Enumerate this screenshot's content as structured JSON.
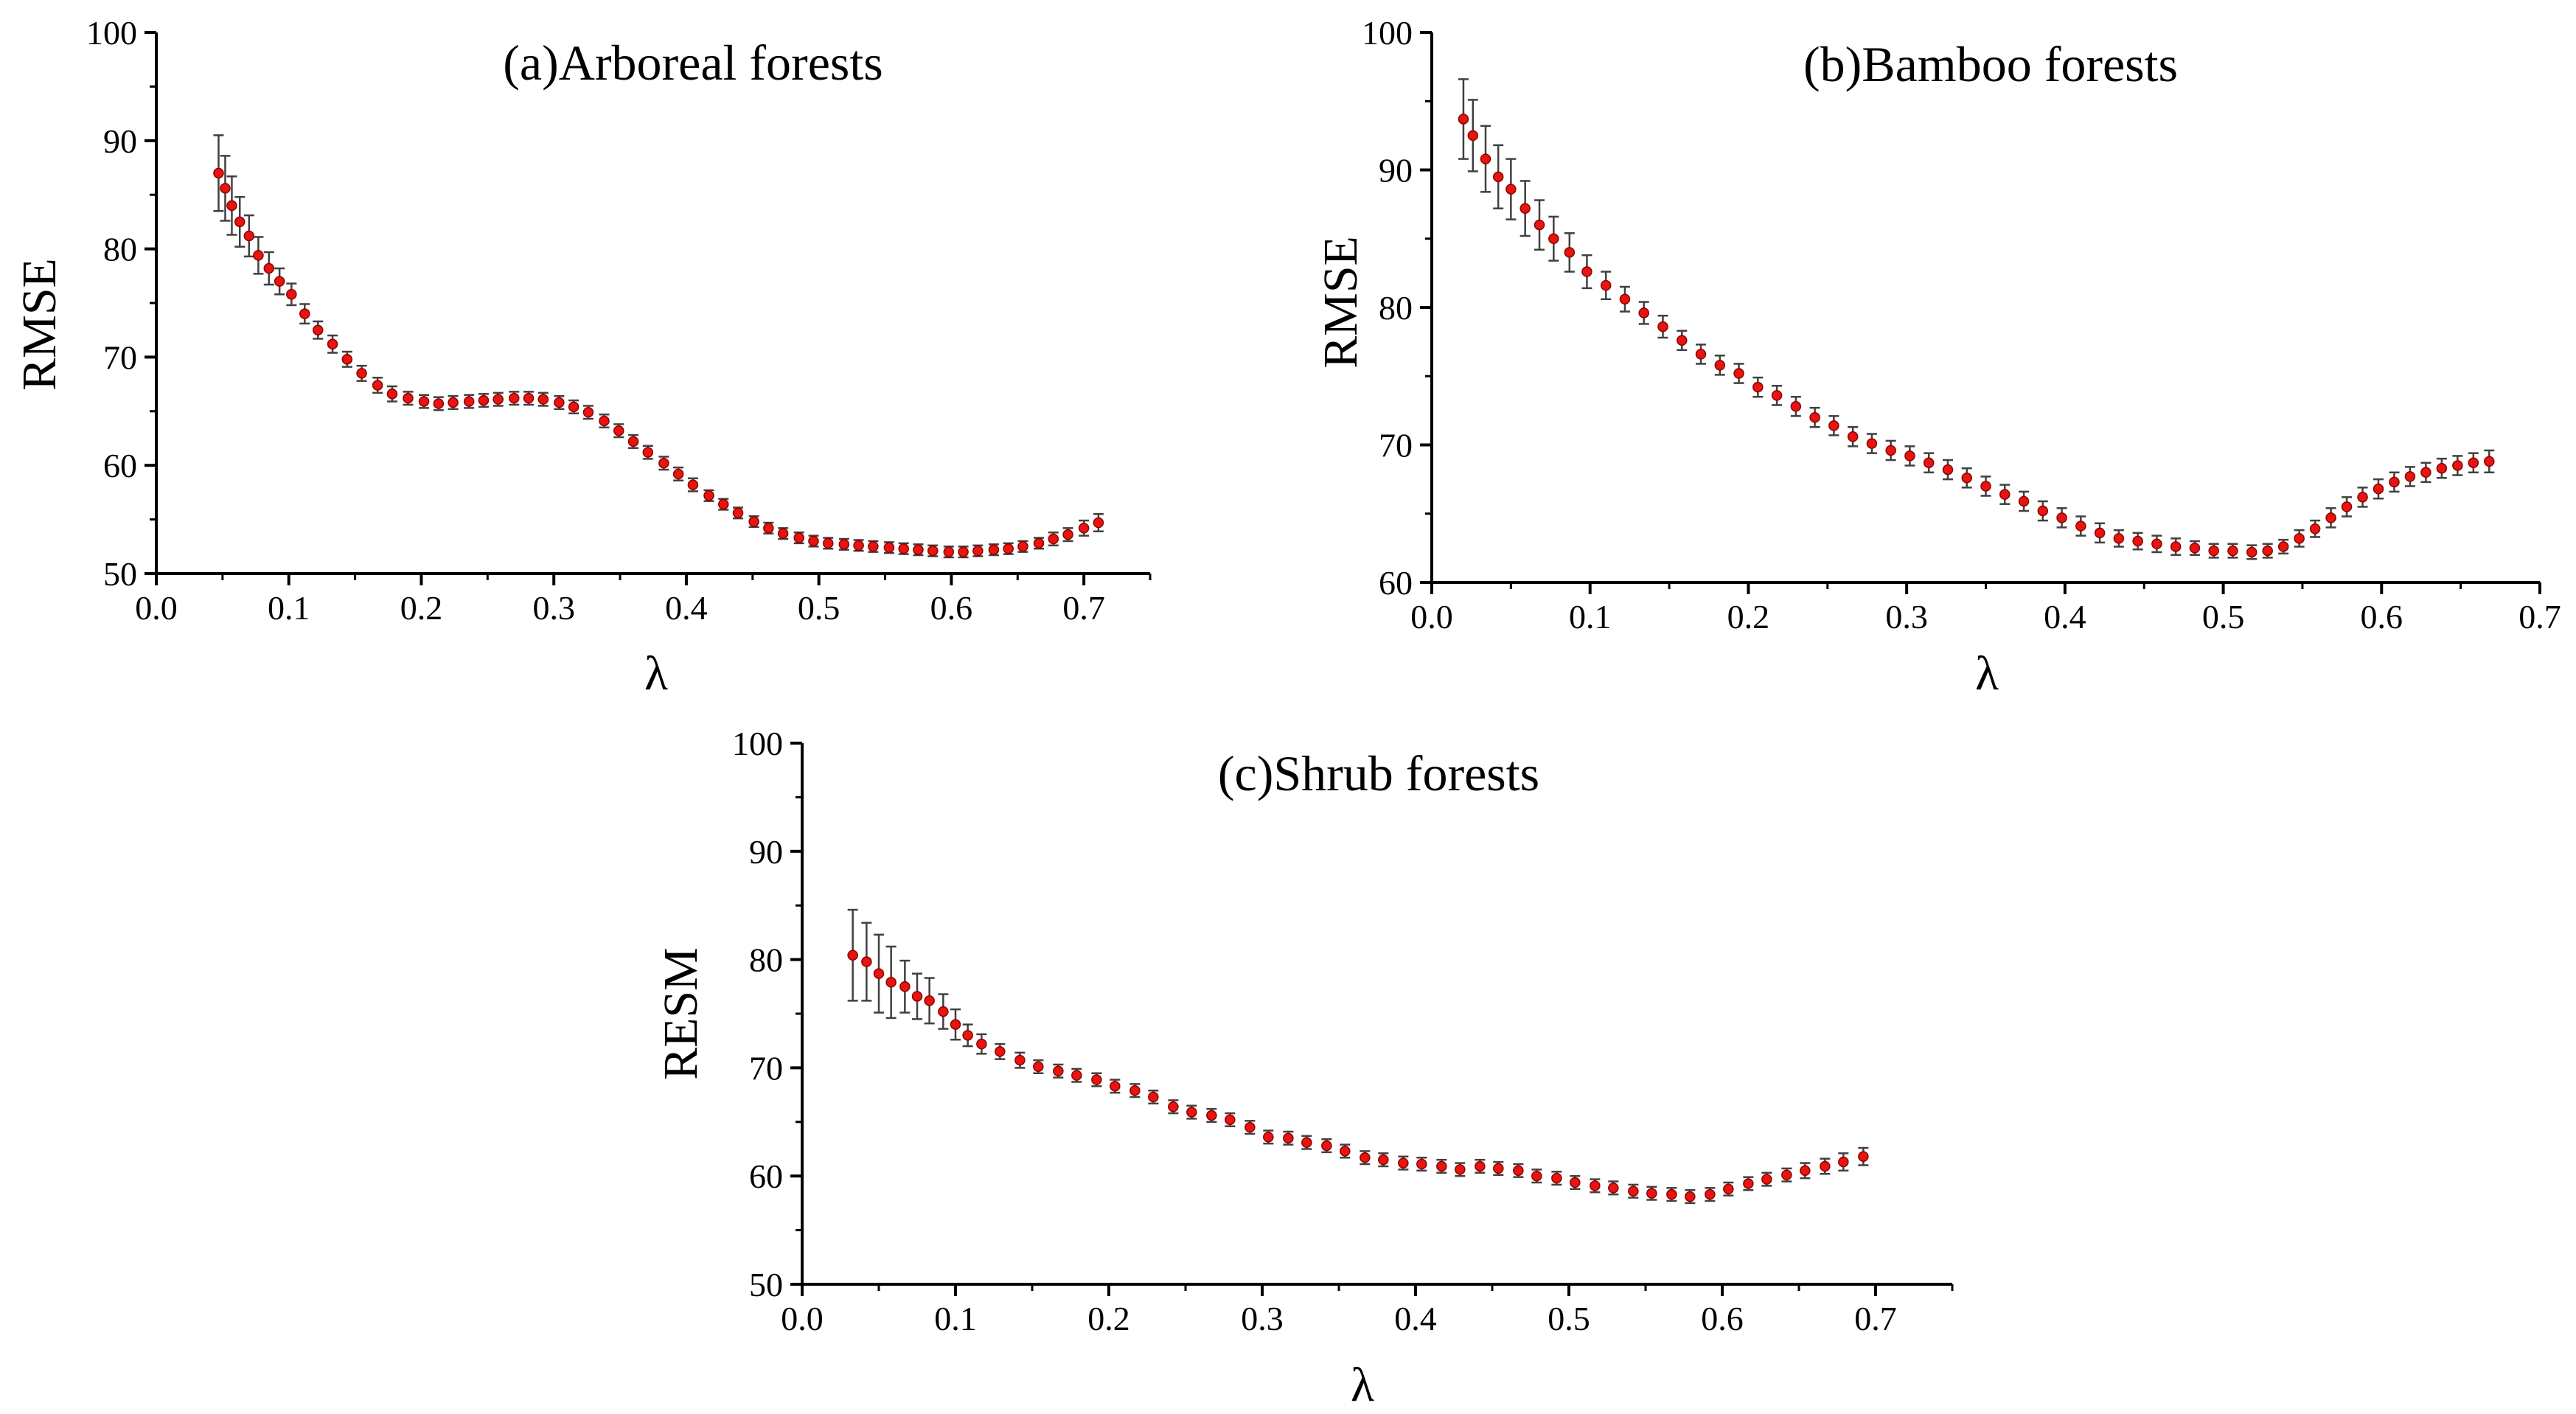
{
  "figure": {
    "description_panels": 3
  },
  "colors": {
    "marker": "#e8140f",
    "marker_edge": "#8b0000",
    "errorbar": "#404040",
    "axis": "#000000"
  },
  "chart_data": [
    {
      "type": "scatter",
      "title": "(a)Arboreal forests",
      "xlabel": "λ",
      "ylabel": "RMSE",
      "xlim": [
        0.0,
        0.75
      ],
      "ylim": [
        50,
        100
      ],
      "xticks": [
        "0.0",
        "0.1",
        "0.2",
        "0.3",
        "0.4",
        "0.5",
        "0.6",
        "0.7"
      ],
      "yticks": [
        "50",
        "60",
        "70",
        "80",
        "90",
        "100"
      ],
      "x": [
        0.047,
        0.052,
        0.057,
        0.063,
        0.07,
        0.077,
        0.085,
        0.093,
        0.102,
        0.112,
        0.122,
        0.133,
        0.144,
        0.155,
        0.167,
        0.178,
        0.19,
        0.202,
        0.213,
        0.224,
        0.236,
        0.247,
        0.258,
        0.27,
        0.281,
        0.292,
        0.304,
        0.315,
        0.326,
        0.338,
        0.349,
        0.36,
        0.371,
        0.383,
        0.394,
        0.405,
        0.417,
        0.428,
        0.439,
        0.451,
        0.462,
        0.473,
        0.485,
        0.496,
        0.507,
        0.519,
        0.53,
        0.541,
        0.553,
        0.564,
        0.575,
        0.586,
        0.598,
        0.609,
        0.62,
        0.632,
        0.643,
        0.654,
        0.666,
        0.677,
        0.688,
        0.7,
        0.711
      ],
      "y": [
        87.0,
        85.6,
        84.0,
        82.5,
        81.2,
        79.4,
        78.2,
        77.0,
        75.8,
        74.0,
        72.5,
        71.2,
        69.8,
        68.5,
        67.4,
        66.6,
        66.2,
        65.9,
        65.7,
        65.8,
        65.9,
        66.0,
        66.1,
        66.2,
        66.2,
        66.1,
        65.8,
        65.4,
        64.9,
        64.1,
        63.2,
        62.2,
        61.2,
        60.2,
        59.2,
        58.2,
        57.2,
        56.4,
        55.6,
        54.8,
        54.2,
        53.7,
        53.3,
        53.0,
        52.8,
        52.7,
        52.6,
        52.5,
        52.4,
        52.3,
        52.2,
        52.1,
        52.0,
        52.0,
        52.1,
        52.2,
        52.3,
        52.5,
        52.8,
        53.2,
        53.6,
        54.2,
        54.7
      ],
      "err": [
        3.5,
        3.0,
        2.7,
        2.3,
        1.9,
        1.7,
        1.5,
        1.2,
        1.0,
        0.9,
        0.8,
        0.8,
        0.7,
        0.7,
        0.7,
        0.7,
        0.6,
        0.6,
        0.6,
        0.6,
        0.6,
        0.6,
        0.6,
        0.6,
        0.6,
        0.6,
        0.6,
        0.6,
        0.6,
        0.6,
        0.6,
        0.6,
        0.6,
        0.6,
        0.6,
        0.6,
        0.5,
        0.5,
        0.5,
        0.5,
        0.5,
        0.5,
        0.5,
        0.5,
        0.5,
        0.5,
        0.5,
        0.5,
        0.5,
        0.5,
        0.5,
        0.5,
        0.5,
        0.5,
        0.5,
        0.5,
        0.5,
        0.5,
        0.5,
        0.6,
        0.6,
        0.7,
        0.8
      ]
    },
    {
      "type": "scatter",
      "title": "(b)Bamboo forests",
      "xlabel": "λ",
      "ylabel": "RMSE",
      "xlim": [
        0.0,
        0.7
      ],
      "ylim": [
        60,
        100
      ],
      "xticks": [
        "0.0",
        "0.1",
        "0.2",
        "0.3",
        "0.4",
        "0.5",
        "0.6",
        "0.7"
      ],
      "yticks": [
        "60",
        "70",
        "80",
        "90",
        "100"
      ],
      "x": [
        0.02,
        0.026,
        0.034,
        0.042,
        0.05,
        0.059,
        0.068,
        0.077,
        0.087,
        0.098,
        0.11,
        0.122,
        0.134,
        0.146,
        0.158,
        0.17,
        0.182,
        0.194,
        0.206,
        0.218,
        0.23,
        0.242,
        0.254,
        0.266,
        0.278,
        0.29,
        0.302,
        0.314,
        0.326,
        0.338,
        0.35,
        0.362,
        0.374,
        0.386,
        0.398,
        0.41,
        0.422,
        0.434,
        0.446,
        0.458,
        0.47,
        0.482,
        0.494,
        0.506,
        0.518,
        0.528,
        0.538,
        0.548,
        0.558,
        0.568,
        0.578,
        0.588,
        0.598,
        0.608,
        0.618,
        0.628,
        0.638,
        0.648,
        0.658,
        0.668
      ],
      "y": [
        93.7,
        92.5,
        90.8,
        89.5,
        88.6,
        87.2,
        86.0,
        85.0,
        84.0,
        82.6,
        81.6,
        80.6,
        79.6,
        78.6,
        77.6,
        76.6,
        75.8,
        75.2,
        74.2,
        73.6,
        72.8,
        72.0,
        71.4,
        70.6,
        70.1,
        69.6,
        69.2,
        68.7,
        68.2,
        67.6,
        67.0,
        66.4,
        65.9,
        65.2,
        64.7,
        64.1,
        63.6,
        63.2,
        63.0,
        62.8,
        62.6,
        62.5,
        62.3,
        62.3,
        62.2,
        62.3,
        62.6,
        63.2,
        63.9,
        64.7,
        65.5,
        66.2,
        66.8,
        67.3,
        67.7,
        68.0,
        68.3,
        68.5,
        68.7,
        68.8
      ],
      "err": [
        2.9,
        2.6,
        2.4,
        2.3,
        2.2,
        2.0,
        1.8,
        1.6,
        1.4,
        1.2,
        1.0,
        0.9,
        0.8,
        0.8,
        0.7,
        0.7,
        0.7,
        0.7,
        0.7,
        0.7,
        0.7,
        0.7,
        0.7,
        0.7,
        0.7,
        0.7,
        0.7,
        0.7,
        0.7,
        0.7,
        0.7,
        0.7,
        0.7,
        0.7,
        0.7,
        0.7,
        0.7,
        0.6,
        0.6,
        0.6,
        0.6,
        0.5,
        0.5,
        0.5,
        0.5,
        0.5,
        0.5,
        0.6,
        0.6,
        0.7,
        0.7,
        0.7,
        0.7,
        0.7,
        0.7,
        0.7,
        0.7,
        0.7,
        0.7,
        0.8
      ]
    },
    {
      "type": "scatter",
      "title": "(c)Shrub forests",
      "xlabel": "λ",
      "ylabel": "RESM",
      "xlim": [
        0.0,
        0.75
      ],
      "ylim": [
        50,
        100
      ],
      "xticks": [
        "0.0",
        "0.1",
        "0.2",
        "0.3",
        "0.4",
        "0.5",
        "0.6",
        "0.7"
      ],
      "yticks": [
        "50",
        "60",
        "70",
        "80",
        "90",
        "100"
      ],
      "x": [
        0.033,
        0.042,
        0.05,
        0.058,
        0.067,
        0.075,
        0.083,
        0.092,
        0.1,
        0.108,
        0.117,
        0.129,
        0.142,
        0.154,
        0.167,
        0.179,
        0.192,
        0.204,
        0.217,
        0.229,
        0.242,
        0.254,
        0.267,
        0.279,
        0.292,
        0.304,
        0.317,
        0.329,
        0.342,
        0.354,
        0.367,
        0.379,
        0.392,
        0.404,
        0.417,
        0.429,
        0.442,
        0.454,
        0.467,
        0.479,
        0.492,
        0.504,
        0.517,
        0.529,
        0.542,
        0.554,
        0.567,
        0.579,
        0.592,
        0.604,
        0.617,
        0.629,
        0.642,
        0.654,
        0.667,
        0.679,
        0.692
      ],
      "y": [
        80.4,
        79.8,
        78.7,
        77.9,
        77.5,
        76.6,
        76.2,
        75.2,
        74.0,
        73.0,
        72.2,
        71.5,
        70.7,
        70.1,
        69.7,
        69.3,
        68.9,
        68.3,
        67.9,
        67.3,
        66.4,
        65.9,
        65.6,
        65.2,
        64.5,
        63.6,
        63.5,
        63.1,
        62.8,
        62.3,
        61.7,
        61.5,
        61.2,
        61.1,
        60.9,
        60.6,
        60.9,
        60.7,
        60.5,
        60.0,
        59.8,
        59.4,
        59.1,
        58.9,
        58.6,
        58.4,
        58.3,
        58.1,
        58.3,
        58.8,
        59.3,
        59.7,
        60.1,
        60.5,
        60.9,
        61.3,
        61.8
      ],
      "err": [
        4.2,
        3.6,
        3.6,
        3.3,
        2.4,
        2.1,
        2.1,
        1.6,
        1.4,
        1.0,
        0.9,
        0.7,
        0.7,
        0.6,
        0.6,
        0.6,
        0.6,
        0.6,
        0.6,
        0.6,
        0.6,
        0.6,
        0.6,
        0.6,
        0.6,
        0.6,
        0.6,
        0.6,
        0.6,
        0.6,
        0.6,
        0.6,
        0.6,
        0.6,
        0.6,
        0.6,
        0.6,
        0.6,
        0.6,
        0.6,
        0.6,
        0.6,
        0.6,
        0.6,
        0.6,
        0.6,
        0.6,
        0.6,
        0.6,
        0.6,
        0.6,
        0.6,
        0.6,
        0.7,
        0.7,
        0.8,
        0.8
      ]
    }
  ]
}
